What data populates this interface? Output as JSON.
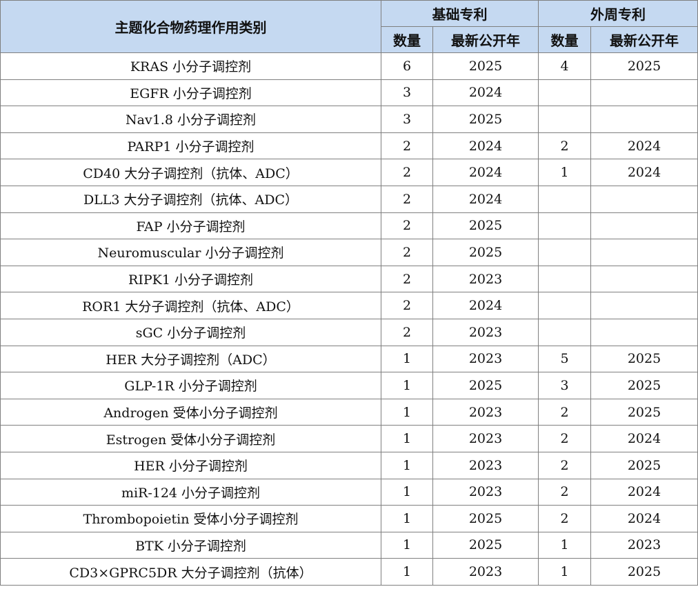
{
  "table": {
    "header": {
      "category": "主题化合物药理作用类别",
      "group_basic": "基础专利",
      "group_peripheral": "外周专利",
      "count": "数量",
      "latest_year": "最新公开年"
    },
    "rows": [
      {
        "name": "KRAS 小分子调控剂",
        "basic_count": "6",
        "basic_year": "2025",
        "peri_count": "4",
        "peri_year": "2025"
      },
      {
        "name": "EGFR 小分子调控剂",
        "basic_count": "3",
        "basic_year": "2024",
        "peri_count": "",
        "peri_year": ""
      },
      {
        "name": "Nav1.8 小分子调控剂",
        "basic_count": "3",
        "basic_year": "2025",
        "peri_count": "",
        "peri_year": ""
      },
      {
        "name": "PARP1 小分子调控剂",
        "basic_count": "2",
        "basic_year": "2024",
        "peri_count": "2",
        "peri_year": "2024"
      },
      {
        "name": "CD40 大分子调控剂（抗体、ADC）",
        "basic_count": "2",
        "basic_year": "2024",
        "peri_count": "1",
        "peri_year": "2024"
      },
      {
        "name": "DLL3 大分子调控剂（抗体、ADC）",
        "basic_count": "2",
        "basic_year": "2024",
        "peri_count": "",
        "peri_year": ""
      },
      {
        "name": "FAP 小分子调控剂",
        "basic_count": "2",
        "basic_year": "2025",
        "peri_count": "",
        "peri_year": ""
      },
      {
        "name": "Neuromuscular 小分子调控剂",
        "basic_count": "2",
        "basic_year": "2025",
        "peri_count": "",
        "peri_year": ""
      },
      {
        "name": "RIPK1 小分子调控剂",
        "basic_count": "2",
        "basic_year": "2023",
        "peri_count": "",
        "peri_year": ""
      },
      {
        "name": "ROR1 大分子调控剂（抗体、ADC）",
        "basic_count": "2",
        "basic_year": "2024",
        "peri_count": "",
        "peri_year": ""
      },
      {
        "name": "sGC 小分子调控剂",
        "basic_count": "2",
        "basic_year": "2023",
        "peri_count": "",
        "peri_year": ""
      },
      {
        "name": "HER 大分子调控剂（ADC）",
        "basic_count": "1",
        "basic_year": "2023",
        "peri_count": "5",
        "peri_year": "2025"
      },
      {
        "name": "GLP-1R 小分子调控剂",
        "basic_count": "1",
        "basic_year": "2025",
        "peri_count": "3",
        "peri_year": "2025"
      },
      {
        "name": "Androgen 受体小分子调控剂",
        "basic_count": "1",
        "basic_year": "2023",
        "peri_count": "2",
        "peri_year": "2025"
      },
      {
        "name": "Estrogen 受体小分子调控剂",
        "basic_count": "1",
        "basic_year": "2023",
        "peri_count": "2",
        "peri_year": "2024"
      },
      {
        "name": "HER 小分子调控剂",
        "basic_count": "1",
        "basic_year": "2023",
        "peri_count": "2",
        "peri_year": "2025"
      },
      {
        "name": "miR-124 小分子调控剂",
        "basic_count": "1",
        "basic_year": "2023",
        "peri_count": "2",
        "peri_year": "2024"
      },
      {
        "name": "Thrombopoietin 受体小分子调控剂",
        "basic_count": "1",
        "basic_year": "2025",
        "peri_count": "2",
        "peri_year": "2024"
      },
      {
        "name": "BTK 小分子调控剂",
        "basic_count": "1",
        "basic_year": "2025",
        "peri_count": "1",
        "peri_year": "2023"
      },
      {
        "name": "CD3×GPRC5DR 大分子调控剂（抗体）",
        "basic_count": "1",
        "basic_year": "2023",
        "peri_count": "1",
        "peri_year": "2025"
      }
    ]
  }
}
